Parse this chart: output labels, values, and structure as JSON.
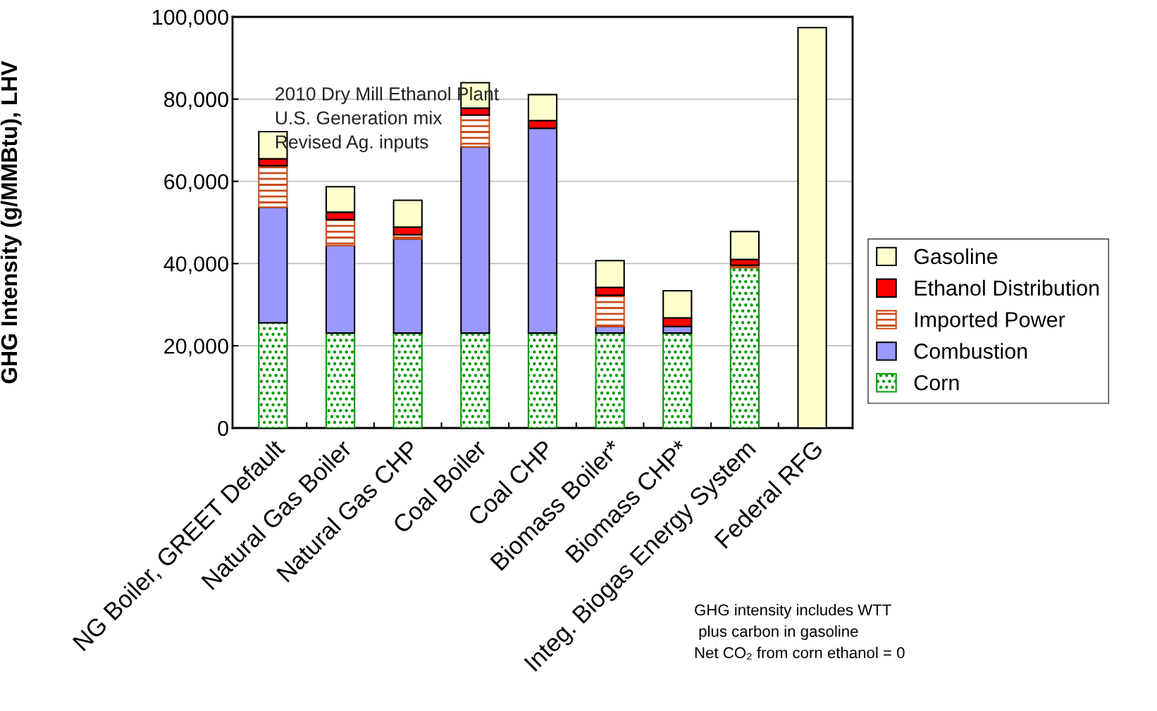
{
  "chart_data": {
    "type": "bar",
    "stacked": true,
    "ylabel": "GHG Intensity (g/MMBtu), LHV",
    "categories": [
      "NG Boiler, GREET Default",
      "Natural Gas Boiler",
      "Natural Gas CHP",
      "Coal Boiler",
      "Coal CHP",
      "Biomass Boiler*",
      "Biomass CHP*",
      "Integ. Biogas Energy System",
      "Federal RFG"
    ],
    "series": [
      {
        "name": "Corn",
        "color": "#009900",
        "values": [
          25600,
          23100,
          23100,
          23100,
          23100,
          23100,
          23100,
          39000,
          null
        ]
      },
      {
        "name": "Combustion",
        "color": "#9999ff",
        "values": [
          28100,
          21300,
          22900,
          45300,
          49800,
          1600,
          1600,
          null,
          null
        ]
      },
      {
        "name": "Imported Power",
        "color": "#cc4c1a",
        "values": [
          10100,
          6300,
          1000,
          7700,
          null,
          7600,
          null,
          600,
          null
        ]
      },
      {
        "name": "Ethanol Distribution",
        "color": "#ff0000",
        "values": [
          1700,
          1800,
          1900,
          1700,
          1900,
          1900,
          2100,
          1400,
          null
        ]
      },
      {
        "name": "Gasoline",
        "color": "#ffffcc",
        "values": [
          6600,
          6200,
          6500,
          6200,
          6300,
          6500,
          6600,
          6800,
          97400
        ]
      }
    ],
    "ylim": [
      0,
      100000
    ],
    "yticks": [
      0,
      {
        "value": 20000,
        "label": "20,000"
      },
      {
        "value": 40000,
        "label": "40,000"
      },
      {
        "value": 60000,
        "label": "60,000"
      },
      {
        "value": 80000,
        "label": "80,000"
      },
      {
        "value": 100000,
        "label": "100,000"
      }
    ],
    "grid": "y",
    "legend": "right",
    "annotations": [
      "2010 Dry Mill Ethanol Plant\nU.S. Generation mix\nRevised Ag. inputs",
      "GHG intensity includes WTT\n plus carbon in gasoline\nNet CO₂ from corn ethanol = 0"
    ]
  }
}
